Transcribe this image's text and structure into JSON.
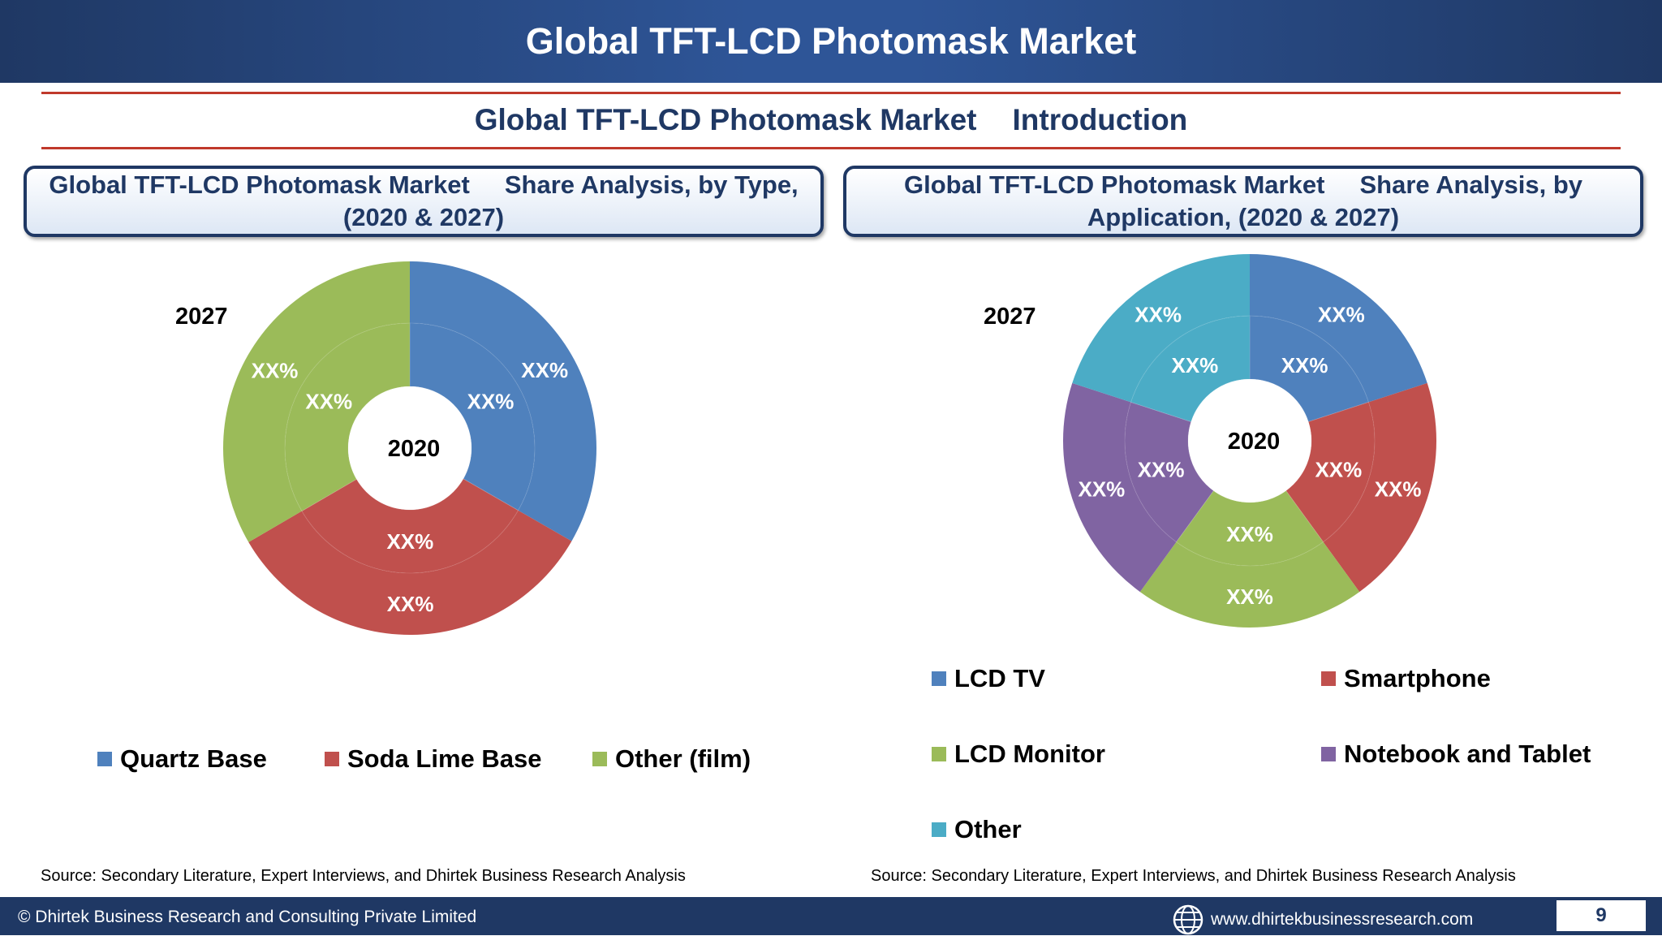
{
  "header": {
    "title": "Global TFT-LCD Photomask Market"
  },
  "subtitle": {
    "left": "Global TFT-LCD Photomask Market",
    "right": "Introduction"
  },
  "left_panel": {
    "title_line1": "Global TFT-LCD Photomask Market     Share Analysis, by Type,",
    "title_line2": "(2020 & 2027)",
    "outer_year": "2027",
    "inner_year": "2020",
    "source": "Source: Secondary Literature, Expert Interviews, and Dhirtek Business Research Analysis"
  },
  "right_panel": {
    "title_line1": "Global TFT-LCD Photomask Market     Share Analysis, by",
    "title_line2": "Application, (2020 & 2027)",
    "outer_year": "2027",
    "inner_year": "2020",
    "source": "Source: Secondary Literature, Expert Interviews, and Dhirtek Business Research Analysis"
  },
  "chart_data": [
    {
      "type": "pie",
      "title": "",
      "rings": [
        "2027",
        "2020"
      ],
      "categories": [
        "Quartz Base",
        "Soda Lime Base",
        "Other (film)"
      ],
      "colors": [
        "#4f81bd",
        "#c0504d",
        "#9bbb59"
      ],
      "values_2027": [
        33.3,
        33.3,
        33.4
      ],
      "values_2020": [
        33.3,
        33.3,
        33.4
      ],
      "outer_labels": [
        "XX%",
        "XX%",
        "XX%"
      ],
      "inner_labels": [
        "XX%",
        "XX%",
        "XX%"
      ],
      "legend_position": "bottom"
    },
    {
      "type": "pie",
      "title": "",
      "rings": [
        "2027",
        "2020"
      ],
      "categories": [
        "LCD TV",
        "Smartphone",
        "LCD Monitor",
        "Notebook and Tablet",
        "Other"
      ],
      "colors": [
        "#4f81bd",
        "#c0504d",
        "#9bbb59",
        "#8064a2",
        "#4bacc6"
      ],
      "values_2027": [
        20,
        20,
        20,
        20,
        20
      ],
      "values_2020": [
        20,
        20,
        20,
        20,
        20
      ],
      "outer_labels": [
        "XX%",
        "XX%",
        "XX%",
        "XX%",
        "XX%"
      ],
      "inner_labels": [
        "XX%",
        "XX%",
        "XX%",
        "XX%",
        "XX%"
      ],
      "legend_position": "bottom"
    }
  ],
  "footer": {
    "copyright": "© Dhirtek Business Research and Consulting Private Limited",
    "website": "www.dhirtekbusinessresearch.com",
    "page_number": "9"
  }
}
